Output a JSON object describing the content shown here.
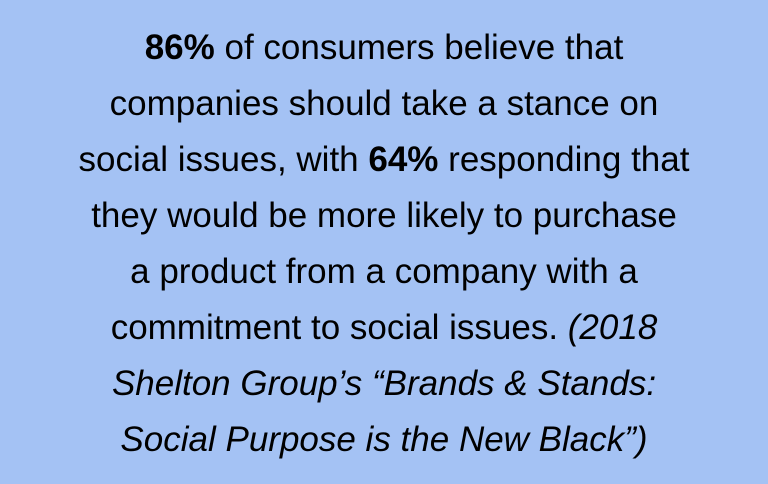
{
  "quote": {
    "lines": [
      {
        "runs": [
          {
            "text": "86%",
            "style": "bold"
          },
          {
            "text": " of consumers believe that",
            "style": "normal"
          }
        ]
      },
      {
        "runs": [
          {
            "text": "companies should take a stance on",
            "style": "normal"
          }
        ]
      },
      {
        "runs": [
          {
            "text": "social issues, with ",
            "style": "normal"
          },
          {
            "text": "64%",
            "style": "bold"
          },
          {
            "text": " responding that",
            "style": "normal"
          }
        ]
      },
      {
        "runs": [
          {
            "text": "they would be more likely to purchase",
            "style": "normal"
          }
        ]
      },
      {
        "runs": [
          {
            "text": "a product from a company with a",
            "style": "normal"
          }
        ]
      },
      {
        "runs": [
          {
            "text": "commitment to social issues. ",
            "style": "normal"
          },
          {
            "text": "(2018",
            "style": "italic"
          }
        ]
      },
      {
        "runs": [
          {
            "text": "Shelton Group’s “Brands & Stands:",
            "style": "italic"
          }
        ]
      },
      {
        "runs": [
          {
            "text": "Social Purpose is the New Black”)",
            "style": "italic"
          }
        ]
      }
    ]
  }
}
